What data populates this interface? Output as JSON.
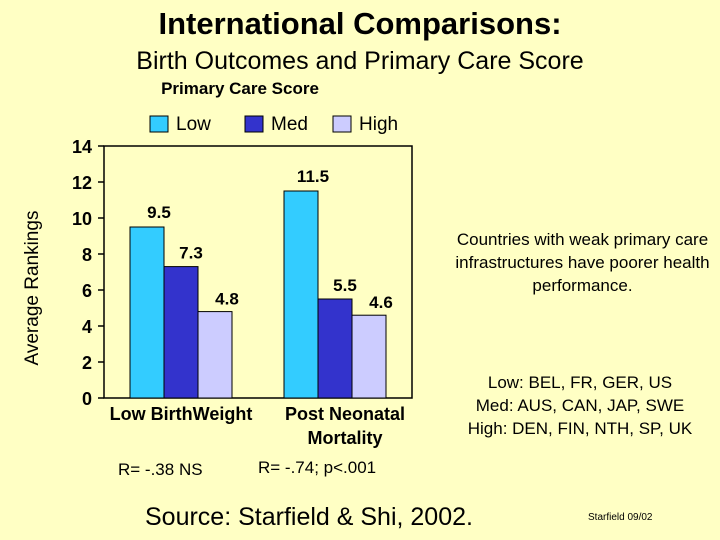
{
  "slide": {
    "title": "International Comparisons:",
    "subtitle": "Birth Outcomes and Primary Care Score",
    "note": "Countries with weak primary care infrastructures have poorer health performance.",
    "groups": [
      "Low: BEL, FR, GER, US",
      "Med: AUS, CAN, JAP, SWE",
      "High: DEN, FIN, NTH, SP, UK"
    ],
    "r_low_birth": "R= -.38 NS",
    "r_post_neonatal": "R= -.74; p<.001",
    "source": "Source: Starfield & Shi, 2002.",
    "footer": "Starfield 09/02"
  },
  "chart_data": {
    "type": "bar",
    "legend_title": "Primary Care Score",
    "ylabel": "Average Rankings",
    "xlabel": "",
    "categories": [
      "Low BirthWeight",
      "Post Neonatal Mortality"
    ],
    "category_lines": [
      [
        "Low BirthWeight"
      ],
      [
        "Post Neonatal",
        "Mortality"
      ]
    ],
    "series": [
      {
        "name": "Low",
        "values": [
          9.5,
          11.5
        ],
        "color": "#33ccff"
      },
      {
        "name": "Med",
        "values": [
          7.3,
          5.5
        ],
        "color": "#3333cc"
      },
      {
        "name": "High",
        "values": [
          4.8,
          4.6
        ],
        "color": "#ccccff"
      }
    ],
    "value_labels": [
      [
        "9.5",
        "11.5"
      ],
      [
        "7.3",
        "5.5"
      ],
      [
        "4.8",
        "4.6"
      ]
    ],
    "yticks": [
      0,
      2,
      4,
      6,
      8,
      10,
      12,
      14
    ],
    "ylim": [
      0,
      14
    ],
    "grid": false,
    "legend_position": "top"
  }
}
